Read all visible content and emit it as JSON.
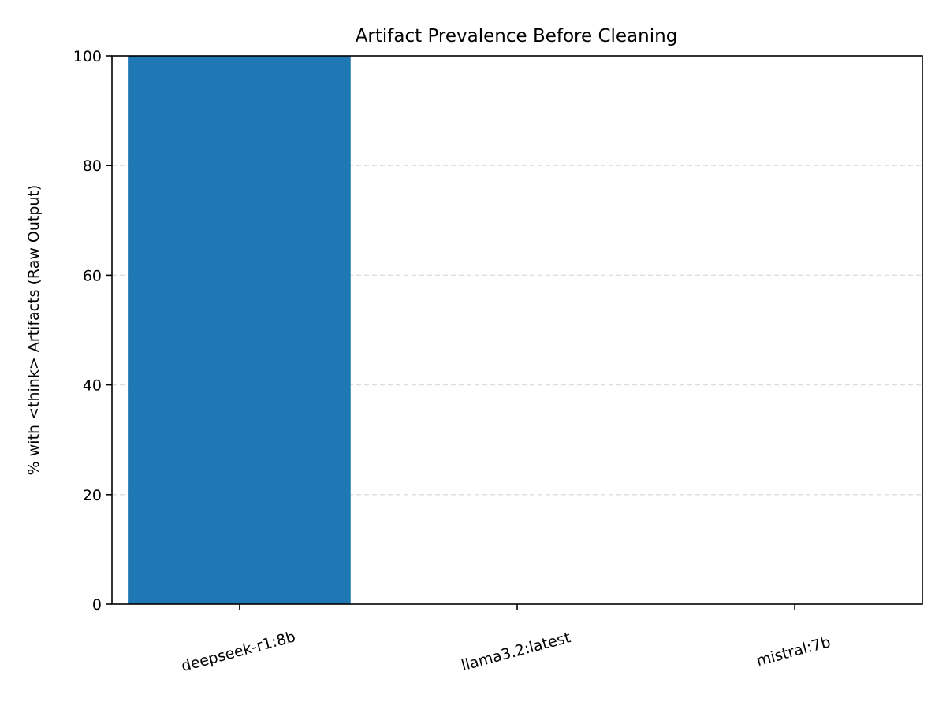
{
  "chart_data": {
    "type": "bar",
    "title": "Artifact Prevalence Before Cleaning",
    "xlabel": "",
    "ylabel": "% with <think> Artifacts (Raw Output)",
    "categories": [
      "deepseek-r1:8b",
      "llama3.2:latest",
      "mistral:7b"
    ],
    "values": [
      100,
      0,
      0
    ],
    "ylim": [
      0,
      100
    ],
    "yticks": [
      0,
      20,
      40,
      60,
      80,
      100
    ],
    "grid": "y-dashed",
    "legend": "none",
    "bar_color": "#1f77b4"
  }
}
